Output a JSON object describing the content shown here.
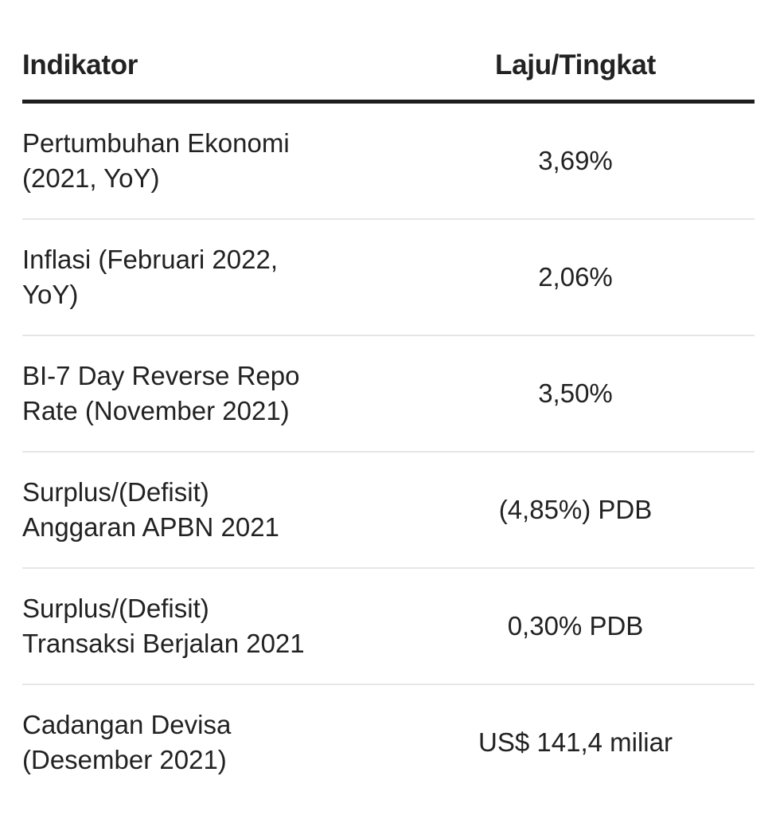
{
  "table": {
    "header": {
      "indicator": "Indikator",
      "value": "Laju/Tingkat"
    },
    "rows": [
      {
        "indicator": "Pertumbuhan Ekonomi\n(2021, YoY)",
        "value": "3,69%"
      },
      {
        "indicator": "Inflasi (Februari 2022,\nYoY)",
        "value": "2,06%"
      },
      {
        "indicator": "BI-7 Day Reverse Repo\nRate (November 2021)",
        "value": "3,50%"
      },
      {
        "indicator": "Surplus/(Defisit)\nAnggaran APBN 2021",
        "value": "(4,85%) PDB"
      },
      {
        "indicator": "Surplus/(Defisit)\nTransaksi Berjalan 2021",
        "value": "0,30% PDB"
      },
      {
        "indicator": "Cadangan Devisa\n(Desember 2021)",
        "value": "US$ 141,4 miliar"
      }
    ]
  }
}
